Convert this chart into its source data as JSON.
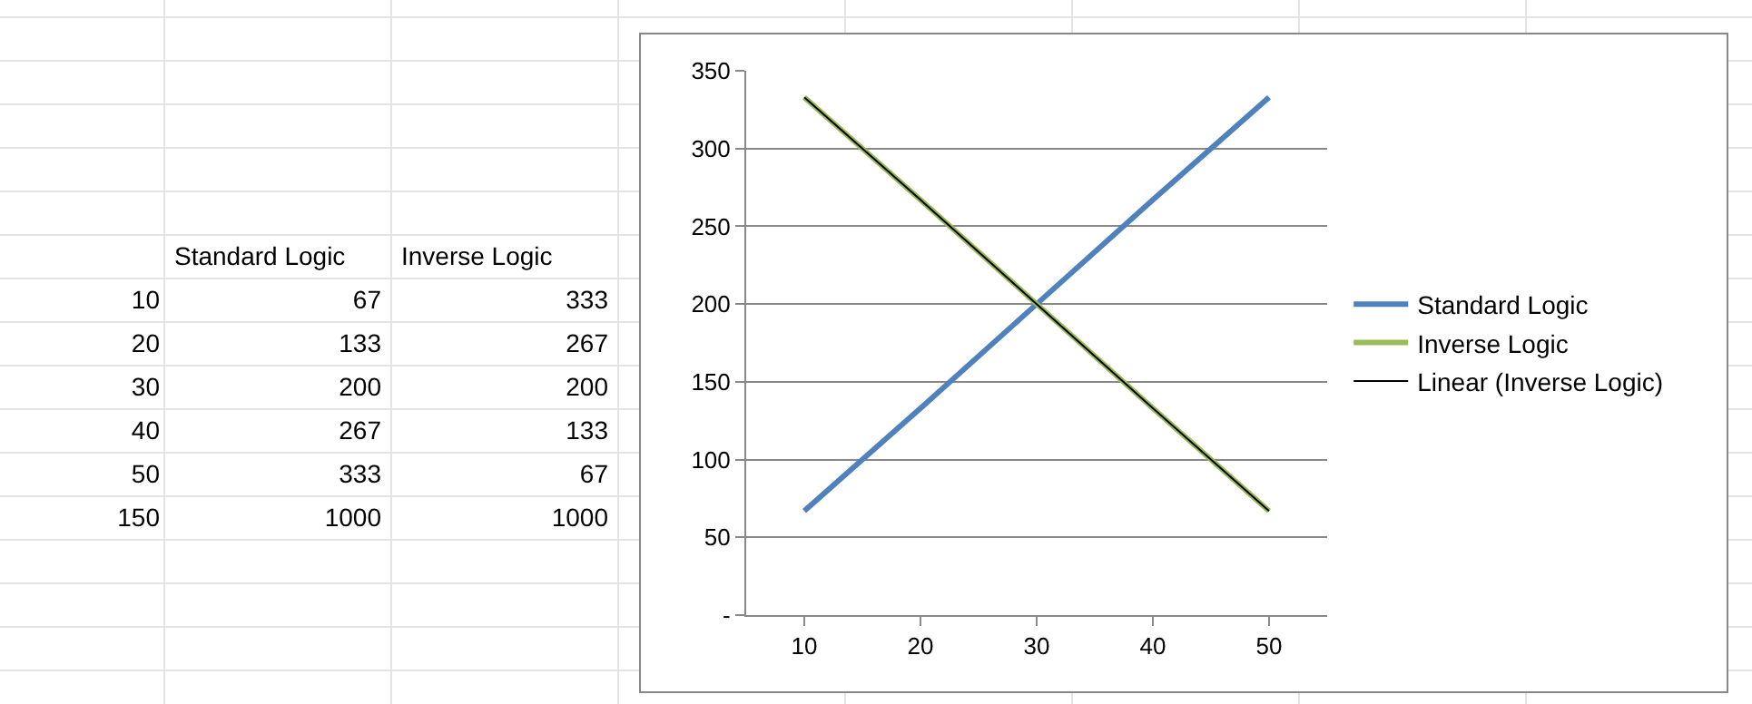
{
  "chart_data": {
    "type": "line",
    "categories": [
      "10",
      "20",
      "30",
      "40",
      "50"
    ],
    "series": [
      {
        "name": "Standard Logic",
        "color": "#4f81bd",
        "values": [
          67,
          133,
          200,
          267,
          333
        ]
      },
      {
        "name": "Inverse Logic",
        "color": "#9bbb59",
        "values": [
          333,
          267,
          200,
          133,
          67
        ]
      },
      {
        "name": "Linear (Inverse Logic)",
        "color": "#000000",
        "values": [
          333,
          267,
          200,
          133,
          67
        ]
      }
    ],
    "ylim": [
      0,
      350
    ],
    "yticks": [
      {
        "value": 0,
        "label": "-"
      },
      50,
      100,
      150,
      200,
      250,
      300,
      350
    ],
    "grid": "y",
    "legend": "right",
    "annotations": [
      "Standard Logic",
      "Inverse Logic",
      "10",
      "67",
      "333",
      "20",
      "133",
      "267",
      "30",
      "200",
      "200",
      "40",
      "267",
      "133",
      "50",
      "333",
      "67",
      "150",
      "1000",
      "1000"
    ]
  }
}
